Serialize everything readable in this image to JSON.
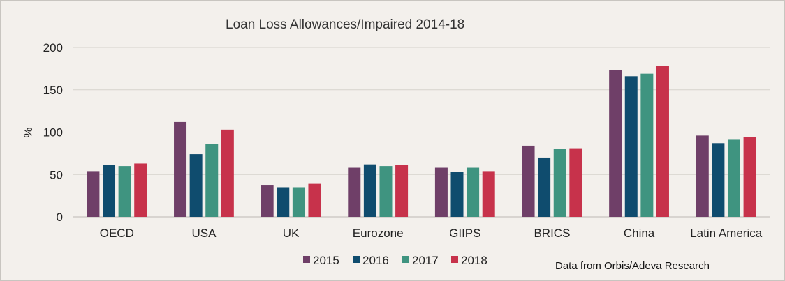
{
  "chart_data": {
    "type": "bar",
    "title": "Loan Loss Allowances/Impaired 2014-18",
    "ylabel": "%",
    "xlabel": "",
    "ylim": [
      0,
      200
    ],
    "yticks": [
      0,
      50,
      100,
      150,
      200
    ],
    "grid": true,
    "legend_position": "bottom",
    "categories": [
      "OECD",
      "USA",
      "UK",
      "Eurozone",
      "GIIPS",
      "BRICS",
      "China",
      "Latin America"
    ],
    "series": [
      {
        "name": "2015",
        "color": "#6f3f68",
        "values": [
          54,
          112,
          37,
          58,
          58,
          84,
          173,
          96
        ]
      },
      {
        "name": "2016",
        "color": "#0f4c6e",
        "values": [
          61,
          74,
          35,
          62,
          53,
          70,
          166,
          87
        ]
      },
      {
        "name": "2017",
        "color": "#3f9480",
        "values": [
          60,
          86,
          35,
          60,
          58,
          80,
          169,
          91
        ]
      },
      {
        "name": "2018",
        "color": "#c7324b",
        "values": [
          63,
          103,
          39,
          61,
          54,
          81,
          178,
          94
        ]
      }
    ]
  },
  "source_note": "Data from Orbis/Adeva Research"
}
